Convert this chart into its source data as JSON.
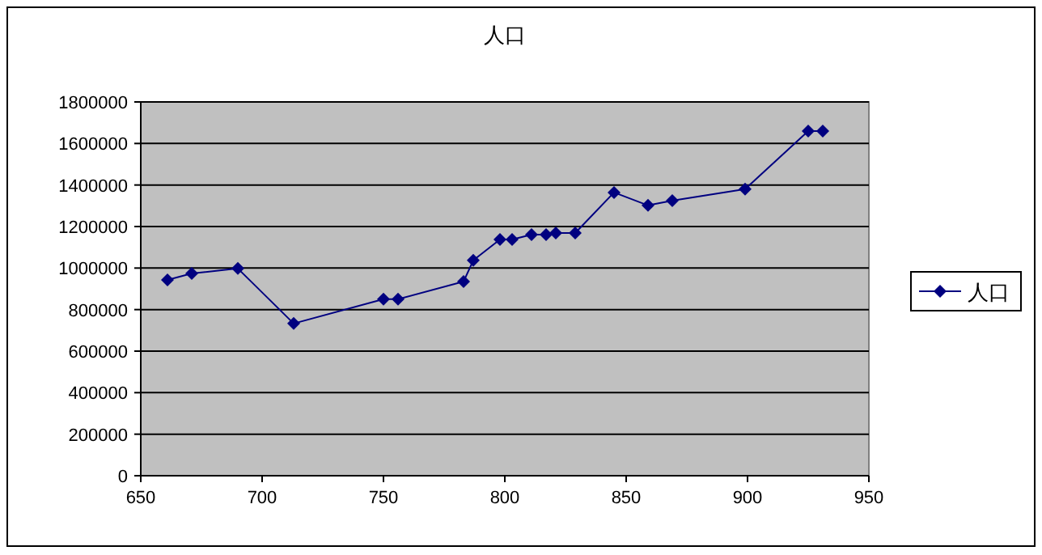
{
  "chart_data": {
    "type": "line",
    "title": "人口",
    "x": [
      661,
      671,
      690,
      713,
      750,
      756,
      783,
      787,
      798,
      803,
      811,
      817,
      821,
      829,
      845,
      859,
      869,
      899,
      925,
      931
    ],
    "series": [
      {
        "name": "人口",
        "color": "#000080",
        "values": [
          943000,
          974000,
          998000,
          733000,
          850000,
          850000,
          935000,
          1037000,
          1138000,
          1138000,
          1161000,
          1161000,
          1169000,
          1169000,
          1364000,
          1302000,
          1325000,
          1380000,
          1660000,
          1660000
        ]
      }
    ],
    "xlim": [
      650,
      950
    ],
    "ylim": [
      0,
      1800000
    ],
    "xticks": [
      650,
      700,
      750,
      800,
      850,
      900,
      950
    ],
    "yticks": [
      0,
      200000,
      400000,
      600000,
      800000,
      1000000,
      1200000,
      1400000,
      1600000,
      1800000
    ],
    "grid": "y",
    "legend": "right",
    "marker": "diamond",
    "line_style": "solid"
  }
}
